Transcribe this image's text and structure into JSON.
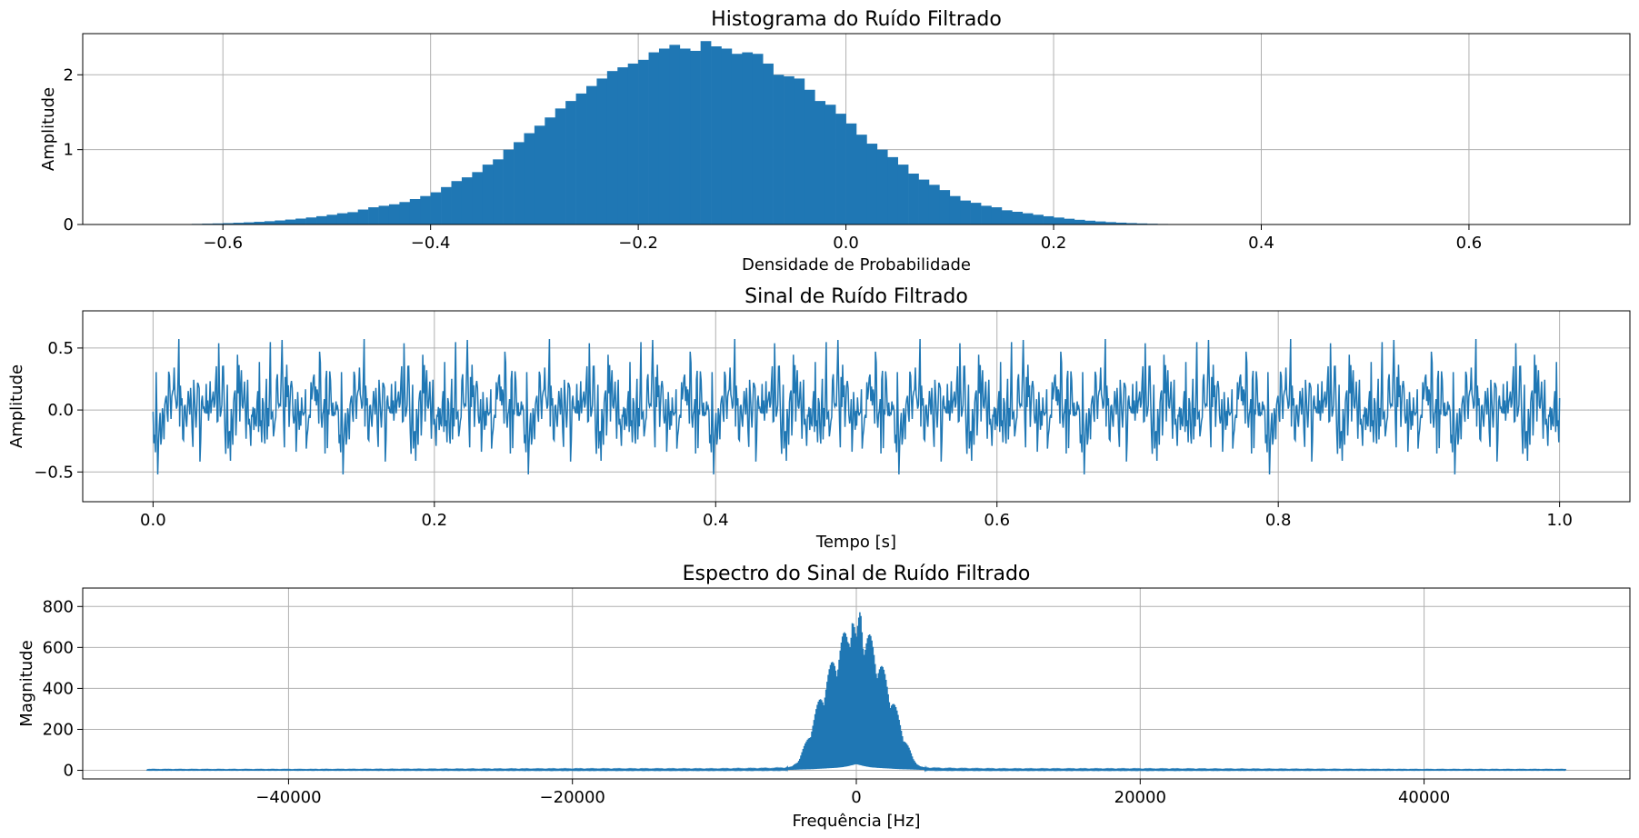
{
  "colors": {
    "series": "#1f77b4",
    "grid": "#b0b0b0"
  },
  "chart_data": [
    {
      "id": "hist",
      "type": "bar",
      "title": "Histograma do Ruído Filtrado",
      "xlabel": "Densidade de Probabilidade",
      "ylabel": "Amplitude",
      "xlim": [
        -0.735,
        0.755
      ],
      "ylim": [
        0,
        2.55
      ],
      "grid": true,
      "xticks": [
        -0.6,
        -0.4,
        -0.2,
        0.0,
        0.2,
        0.4,
        0.6
      ],
      "xtick_labels": [
        "−0.6",
        "−0.4",
        "−0.2",
        "0.0",
        "0.2",
        "0.4",
        "0.6"
      ],
      "yticks": [
        0,
        1,
        2
      ],
      "ytick_labels": [
        "0",
        "1",
        "2"
      ],
      "bin_start": -0.68,
      "bin_width": 0.01,
      "values": [
        0.002,
        0.002,
        0.003,
        0.005,
        0.006,
        0.008,
        0.011,
        0.014,
        0.018,
        0.023,
        0.029,
        0.036,
        0.044,
        0.054,
        0.066,
        0.079,
        0.094,
        0.111,
        0.13,
        0.15,
        0.165,
        0.2,
        0.23,
        0.25,
        0.27,
        0.3,
        0.34,
        0.38,
        0.43,
        0.5,
        0.58,
        0.63,
        0.7,
        0.8,
        0.87,
        1.0,
        1.1,
        1.22,
        1.32,
        1.43,
        1.55,
        1.65,
        1.75,
        1.85,
        1.95,
        2.05,
        2.1,
        2.15,
        2.2,
        2.3,
        2.35,
        2.4,
        2.35,
        2.32,
        2.45,
        2.38,
        2.35,
        2.28,
        2.3,
        2.28,
        2.15,
        2.0,
        1.98,
        1.95,
        1.8,
        1.65,
        1.6,
        1.48,
        1.35,
        1.2,
        1.08,
        1.0,
        0.9,
        0.8,
        0.68,
        0.6,
        0.53,
        0.46,
        0.38,
        0.32,
        0.29,
        0.25,
        0.23,
        0.19,
        0.17,
        0.15,
        0.13,
        0.11,
        0.093,
        0.077,
        0.063,
        0.051,
        0.041,
        0.032,
        0.025,
        0.019,
        0.014,
        0.01,
        0.007,
        0.005,
        0.003,
        0.002,
        0.001,
        0.001,
        0.001,
        0.0,
        0.0,
        0.0,
        0.0,
        0.0,
        0.0,
        0.0,
        0.0,
        0.0,
        0.0,
        0.0,
        0.0,
        0.0
      ]
    },
    {
      "id": "signal",
      "type": "line",
      "title": "Sinal de Ruído Filtrado",
      "xlabel": "Tempo [s]",
      "ylabel": "Amplitude",
      "xlim": [
        -0.05,
        1.05
      ],
      "ylim": [
        -0.74,
        0.8
      ],
      "grid": true,
      "xticks": [
        0.0,
        0.2,
        0.4,
        0.6,
        0.8,
        1.0
      ],
      "xtick_labels": [
        "0.0",
        "0.2",
        "0.4",
        "0.6",
        "0.8",
        "1.0"
      ],
      "yticks": [
        -0.5,
        0.0,
        0.5
      ],
      "ytick_labels": [
        "−0.5",
        "0.0",
        "0.5"
      ],
      "x_range": [
        0,
        1
      ],
      "values": [
        0.02,
        -0.15,
        0.31,
        -0.22,
        0.48,
        -0.05,
        0.12,
        -0.31,
        0.55,
        -0.18,
        0.24,
        -0.4,
        0.08,
        0.35,
        -0.27,
        0.19,
        -0.11,
        0.46,
        -0.33,
        0.05,
        0.29,
        -0.44,
        0.14,
        -0.08,
        0.37,
        -0.25,
        0.21,
        -0.16,
        0.52,
        -0.3,
        0.11,
        -0.2,
        0.33,
        -0.38,
        0.06,
        0.27,
        -0.13,
        0.41,
        -0.29,
        0.17,
        -0.06,
        0.3,
        -0.47,
        0.22,
        -0.1,
        0.39,
        -0.24,
        0.09,
        0.45,
        -0.35,
        0.15,
        -0.19,
        0.28,
        -0.41,
        0.04,
        0.34,
        -0.23,
        0.18,
        -0.12,
        0.5,
        -0.28,
        0.1,
        -0.36,
        0.26,
        -0.07,
        0.43,
        -0.32,
        0.13,
        -0.21,
        0.36,
        -0.53,
        0.2,
        -0.14,
        0.31,
        -0.26,
        0.07,
        0.4,
        -0.34,
        0.16,
        -0.09,
        0.47,
        -0.22,
        0.12,
        -0.39,
        0.25,
        -0.17,
        0.38,
        -0.31,
        0.03,
        0.32,
        -0.27,
        0.19,
        -0.42,
        0.23,
        -0.11,
        0.57,
        -0.29,
        0.14,
        -0.24,
        0.35,
        -0.36,
        0.08,
        0.42,
        -0.2,
        0.17,
        -0.15,
        0.29,
        -0.45,
        0.21,
        -0.05,
        0.37,
        -0.33,
        0.11,
        -0.18,
        0.44,
        -0.26,
        0.09,
        0.33,
        -0.4,
        0.15,
        -0.12,
        0.27,
        -0.35,
        0.18,
        -0.08,
        0.49,
        -0.3,
        0.13,
        -0.23,
        0.36,
        -0.19,
        0.06,
        0.41,
        -0.37,
        0.2,
        -0.1,
        0.3,
        -0.28,
        0.16,
        -0.44,
        0.24,
        -0.13,
        0.4,
        -0.32,
        0.1,
        0.35,
        -0.25,
        0.17,
        -0.16,
        0.46,
        -0.21,
        0.05,
        0.32,
        -0.38,
        0.14,
        -0.09,
        0.28,
        -0.5,
        0.22,
        -0.12,
        0.39,
        -0.27,
        0.11,
        0.36,
        -0.34,
        0.19,
        -0.14,
        0.43,
        -0.23,
        0.07,
        -0.31,
        0.26,
        -0.2,
        0.38,
        -0.36,
        0.13,
        0.3,
        -0.29,
        0.18,
        -0.1,
        0.52,
        -0.24,
        0.12,
        -0.42,
        0.27,
        -0.15,
        0.34,
        -0.33,
        0.09,
        0.4,
        -0.26,
        0.16,
        -0.18,
        0.31,
        -0.4,
        0.21,
        -0.07,
        0.45,
        -0.3,
        0.14,
        0.25,
        -0.37,
        0.19,
        -0.11,
        0.33,
        -0.22,
        0.06,
        0.48,
        -0.35,
        0.15,
        -0.17,
        0.29,
        -0.28,
        0.1,
        0.37,
        -0.32,
        0.2,
        -0.13,
        0.42,
        -0.25,
        0.08,
        -0.39,
        0.24,
        -0.14,
        0.35,
        -0.3,
        0.12,
        0.31,
        -0.27,
        0.18,
        -0.09,
        0.5,
        -0.21,
        0.11,
        -0.34,
        0.28,
        -0.16
      ]
    },
    {
      "id": "spectrum",
      "type": "line",
      "title": "Espectro do Sinal de Ruído Filtrado",
      "xlabel": "Frequência [Hz]",
      "ylabel": "Magnitude",
      "xlim": [
        -54500,
        54500
      ],
      "ylim": [
        -42,
        890
      ],
      "grid": true,
      "xticks": [
        -40000,
        -20000,
        0,
        20000,
        40000
      ],
      "xtick_labels": [
        "−40000",
        "−20000",
        "0",
        "20000",
        "40000"
      ],
      "yticks": [
        0,
        200,
        400,
        600,
        800
      ],
      "ytick_labels": [
        "0",
        "200",
        "400",
        "600",
        "800"
      ],
      "x": [
        -50000,
        -40000,
        -30000,
        -20000,
        -10000,
        -6000,
        -5000,
        -4500,
        -4000,
        -3500,
        -3000,
        -2500,
        -2000,
        -1500,
        -1000,
        -600,
        -300,
        0,
        300,
        600,
        1000,
        1500,
        2000,
        2500,
        3000,
        3500,
        4000,
        4500,
        5000,
        6000,
        10000,
        20000,
        30000,
        40000,
        50000
      ],
      "envelope_upper": [
        4,
        4,
        5,
        6,
        6,
        8,
        10,
        20,
        60,
        150,
        260,
        380,
        480,
        580,
        660,
        700,
        850,
        640,
        850,
        700,
        660,
        580,
        480,
        380,
        260,
        150,
        60,
        20,
        10,
        8,
        6,
        6,
        5,
        4,
        4
      ],
      "envelope_lower": [
        1,
        1,
        1,
        1,
        1,
        2,
        3,
        3,
        4,
        5,
        6,
        8,
        10,
        12,
        15,
        20,
        25,
        30,
        25,
        20,
        15,
        12,
        10,
        8,
        6,
        5,
        4,
        3,
        3,
        2,
        1,
        1,
        1,
        1,
        1
      ]
    }
  ]
}
